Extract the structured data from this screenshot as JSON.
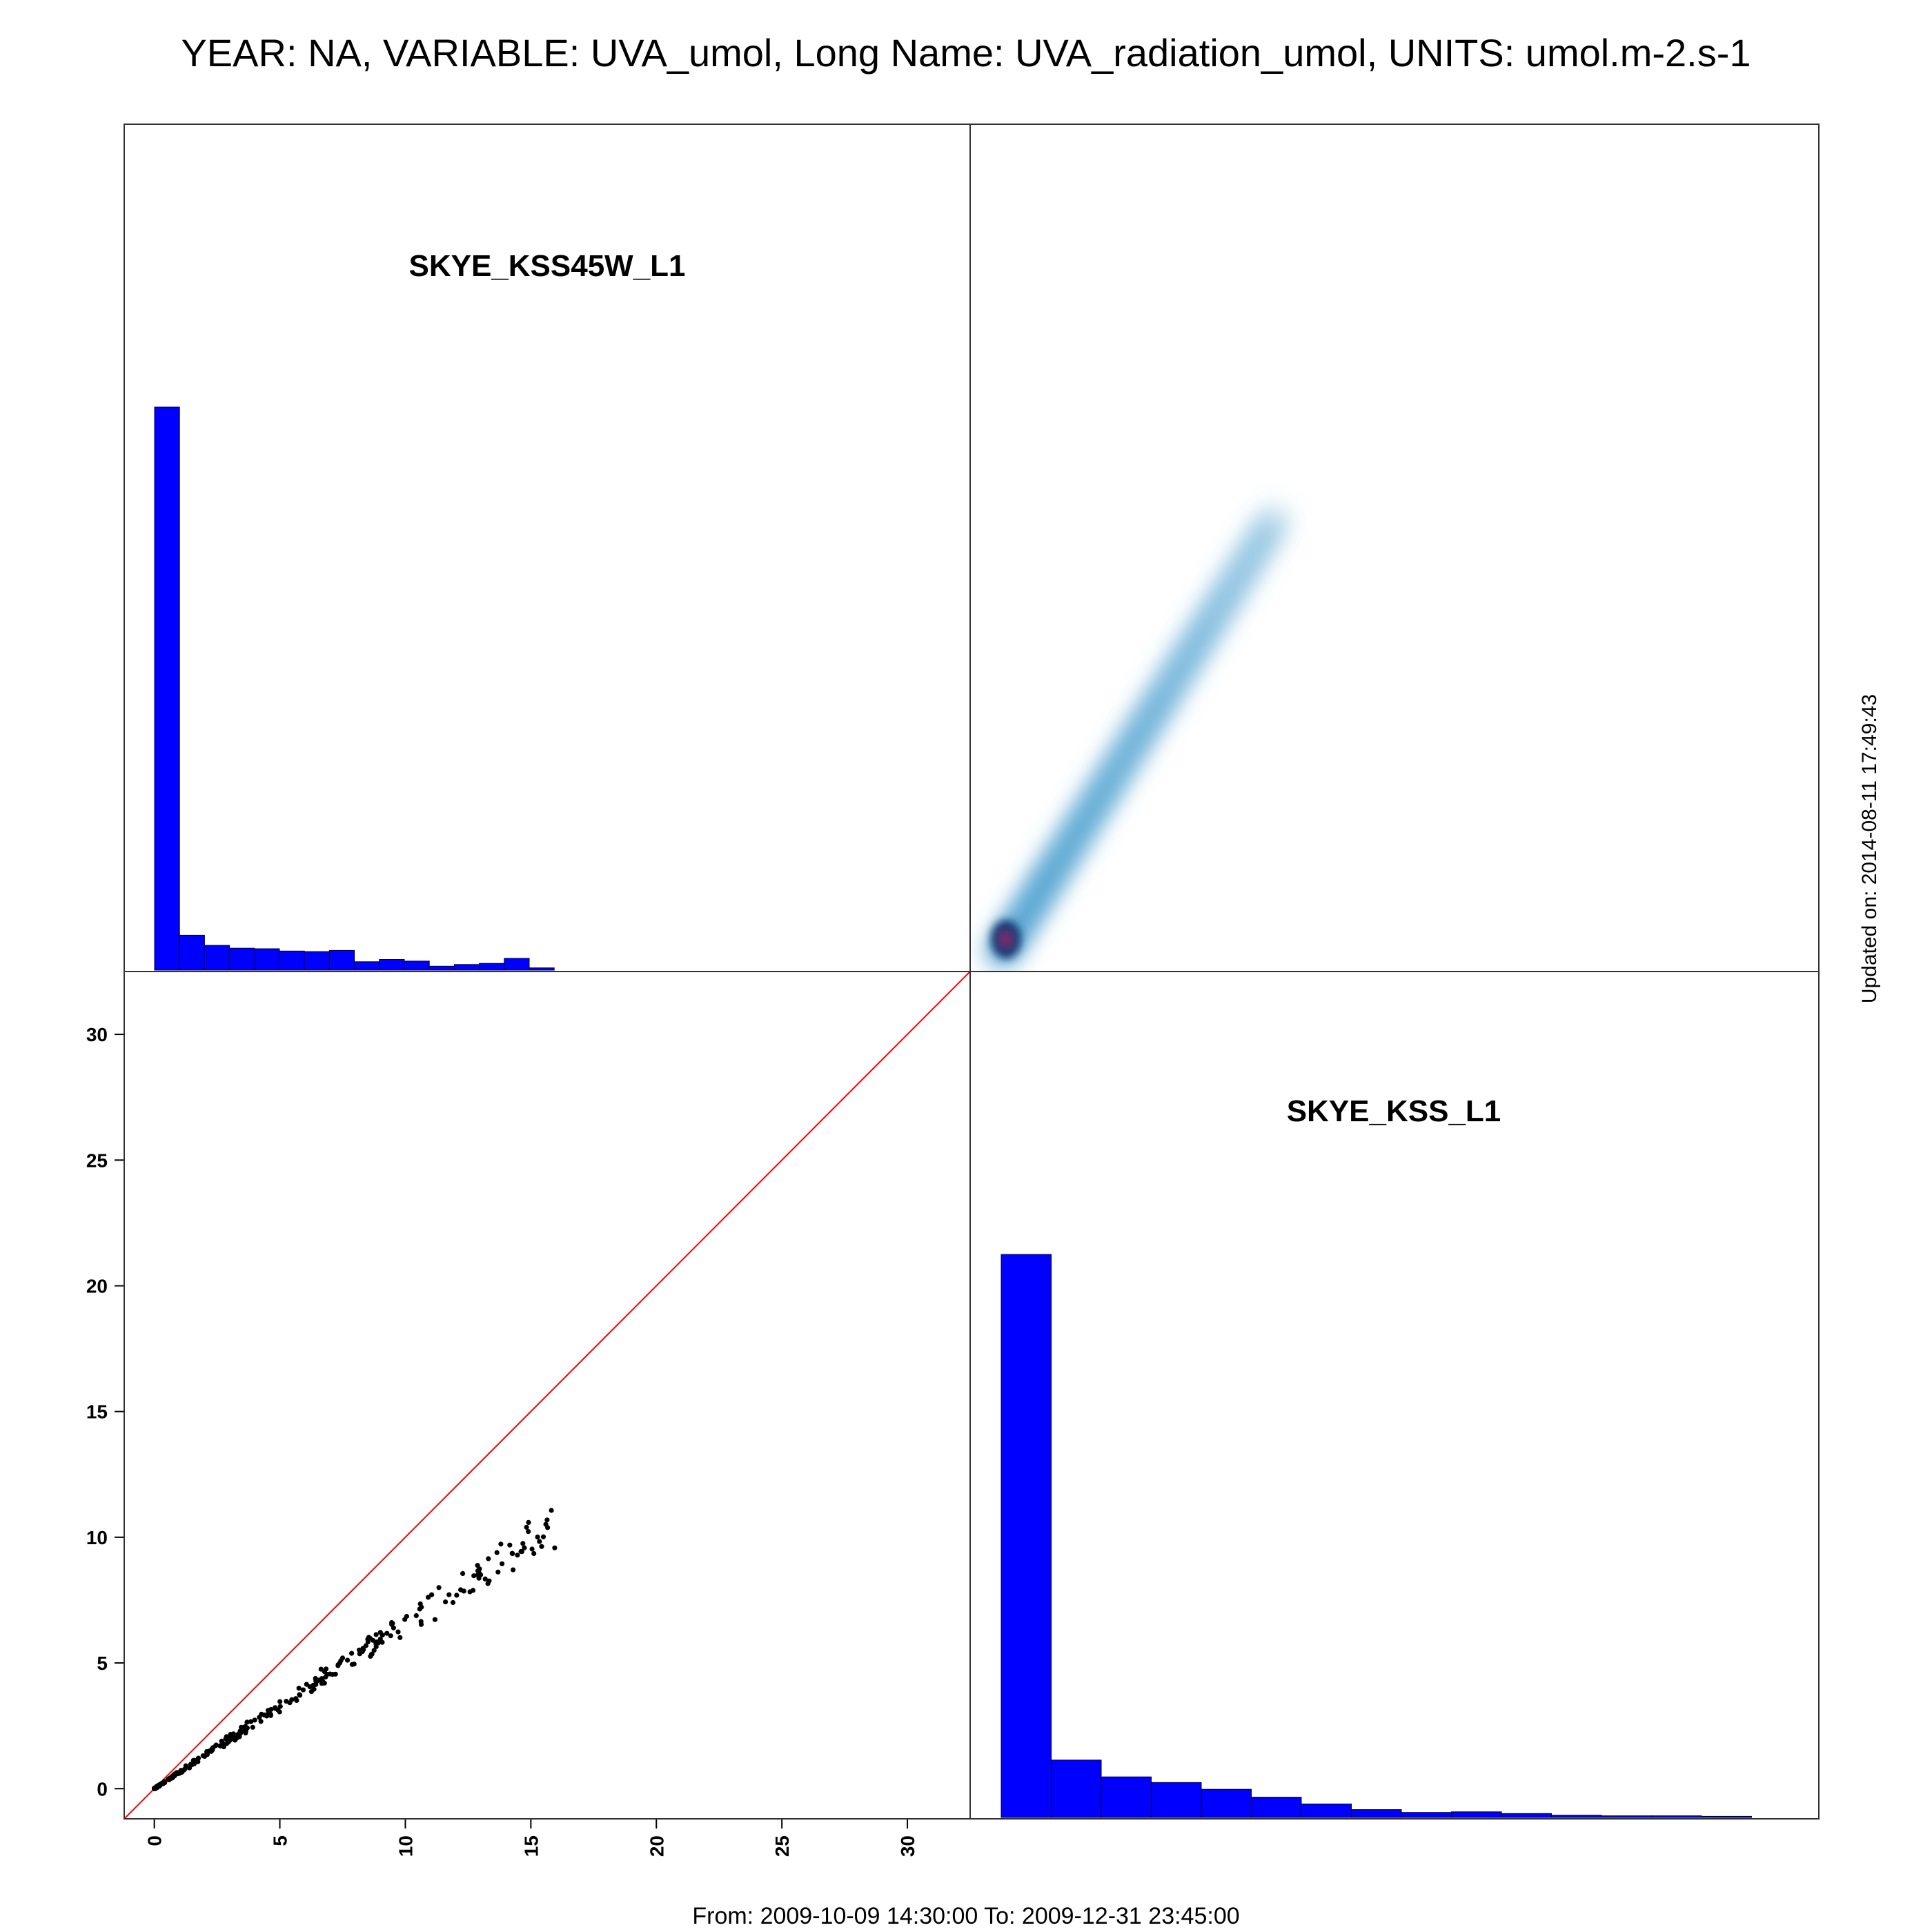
{
  "title": "YEAR: NA, VARIABLE: UVA_umol, Long Name: UVA_radiation_umol, UNITS: umol.m-2.s-1",
  "footer": "From: 2009-10-09 14:30:00 To: 2009-12-31 23:45:00",
  "updated": "Updated on: 2014-08-11 17:49:43",
  "colors": {
    "histogram_fill": "#0000ff",
    "reference_line": "#ff0000",
    "density": "#4a9fcf",
    "density_peak": "#08306b",
    "points": "#000000"
  },
  "chart_data": [
    {
      "type": "bar",
      "panel": "top-left",
      "title": "SKYE_KSS45W_L1",
      "bin_edges": [
        0,
        1,
        2,
        3,
        4,
        5,
        6,
        7,
        8,
        9,
        10,
        11,
        12,
        13,
        14,
        15,
        16
      ],
      "values": [
        100,
        6.2,
        4.4,
        3.9,
        3.8,
        3.4,
        3.3,
        3.5,
        1.5,
        1.9,
        1.6,
        0.7,
        1.0,
        1.2,
        2.1,
        0.4
      ],
      "y_axis": "none"
    },
    {
      "type": "heatmap",
      "panel": "top-right",
      "description_of_axes": "SKYE_KSS45W_L1 (x) vs SKYE_KSS_L1 (y), smoothed density",
      "x_range": [
        0,
        16
      ],
      "y_range": [
        0,
        10.5
      ],
      "peak": [
        0.2,
        0.2
      ]
    },
    {
      "type": "scatter",
      "panel": "bottom-left",
      "xlim": [
        -1.2,
        32.5
      ],
      "ylim": [
        -1.2,
        32.5
      ],
      "x_ticks": [
        0,
        5,
        10,
        15,
        20,
        25,
        30
      ],
      "y_ticks": [
        0,
        5,
        10,
        15,
        20,
        25,
        30
      ],
      "reference_line": "y = x",
      "trend_slope": 0.66,
      "x_range": [
        0,
        16
      ],
      "y_range": [
        0,
        10.5
      ]
    },
    {
      "type": "bar",
      "panel": "bottom-right",
      "title": "SKYE_KSS_L1",
      "bin_edges": [
        0,
        1,
        2,
        3,
        4,
        5,
        6,
        7,
        8,
        9,
        10,
        11,
        12,
        13,
        14,
        15
      ],
      "values": [
        100,
        10.2,
        7.2,
        6.2,
        5.0,
        3.6,
        2.4,
        1.4,
        0.9,
        1.0,
        0.7,
        0.4,
        0.3,
        0.3,
        0.2
      ],
      "y_axis": "none"
    }
  ]
}
